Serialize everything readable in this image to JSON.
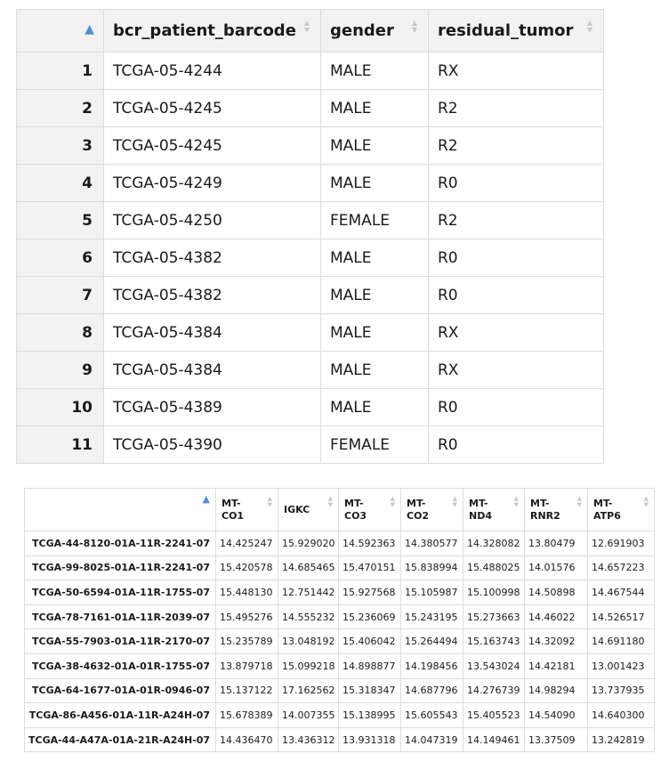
{
  "table1": {
    "columns": [
      "bcr_patient_barcode",
      "gender",
      "residual_tumor"
    ],
    "rows": [
      {
        "n": "1",
        "barcode": "TCGA-05-4244",
        "gender": "MALE",
        "residual": "RX"
      },
      {
        "n": "2",
        "barcode": "TCGA-05-4245",
        "gender": "MALE",
        "residual": "R2"
      },
      {
        "n": "3",
        "barcode": "TCGA-05-4245",
        "gender": "MALE",
        "residual": "R2"
      },
      {
        "n": "4",
        "barcode": "TCGA-05-4249",
        "gender": "MALE",
        "residual": "R0"
      },
      {
        "n": "5",
        "barcode": "TCGA-05-4250",
        "gender": "FEMALE",
        "residual": "R2"
      },
      {
        "n": "6",
        "barcode": "TCGA-05-4382",
        "gender": "MALE",
        "residual": "R0"
      },
      {
        "n": "7",
        "barcode": "TCGA-05-4382",
        "gender": "MALE",
        "residual": "R0"
      },
      {
        "n": "8",
        "barcode": "TCGA-05-4384",
        "gender": "MALE",
        "residual": "RX"
      },
      {
        "n": "9",
        "barcode": "TCGA-05-4384",
        "gender": "MALE",
        "residual": "RX"
      },
      {
        "n": "10",
        "barcode": "TCGA-05-4389",
        "gender": "MALE",
        "residual": "R0"
      },
      {
        "n": "11",
        "barcode": "TCGA-05-4390",
        "gender": "FEMALE",
        "residual": "R0"
      }
    ]
  },
  "table2": {
    "columns": [
      {
        "l1": "MT-",
        "l2": "CO1"
      },
      {
        "l1": "IGKC",
        "l2": ""
      },
      {
        "l1": "MT-",
        "l2": "CO3"
      },
      {
        "l1": "MT-",
        "l2": "CO2"
      },
      {
        "l1": "MT-",
        "l2": "ND4"
      },
      {
        "l1": "MT-",
        "l2": "RNR2"
      },
      {
        "l1": "MT-",
        "l2": "ATP6"
      }
    ],
    "rows": [
      {
        "name": "TCGA-44-8120-01A-11R-2241-07",
        "v": [
          "14.425247",
          "15.929020",
          "14.592363",
          "14.380577",
          "14.328082",
          "13.80479",
          "12.691903"
        ]
      },
      {
        "name": "TCGA-99-8025-01A-11R-2241-07",
        "v": [
          "15.420578",
          "14.685465",
          "15.470151",
          "15.838994",
          "15.488025",
          "14.01576",
          "14.657223"
        ]
      },
      {
        "name": "TCGA-50-6594-01A-11R-1755-07",
        "v": [
          "15.448130",
          "12.751442",
          "15.927568",
          "15.105987",
          "15.100998",
          "14.50898",
          "14.467544"
        ]
      },
      {
        "name": "TCGA-78-7161-01A-11R-2039-07",
        "v": [
          "15.495276",
          "14.555232",
          "15.236069",
          "15.243195",
          "15.273663",
          "14.46022",
          "14.526517"
        ]
      },
      {
        "name": "TCGA-55-7903-01A-11R-2170-07",
        "v": [
          "15.235789",
          "13.048192",
          "15.406042",
          "15.264494",
          "15.163743",
          "14.32092",
          "14.691180"
        ]
      },
      {
        "name": "TCGA-38-4632-01A-01R-1755-07",
        "v": [
          "13.879718",
          "15.099218",
          "14.898877",
          "14.198456",
          "13.543024",
          "14.42181",
          "13.001423"
        ]
      },
      {
        "name": "TCGA-64-1677-01A-01R-0946-07",
        "v": [
          "15.137122",
          "17.162562",
          "15.318347",
          "14.687796",
          "14.276739",
          "14.98294",
          "13.737935"
        ]
      },
      {
        "name": "TCGA-86-A456-01A-11R-A24H-07",
        "v": [
          "15.678389",
          "14.007355",
          "15.138995",
          "15.605543",
          "15.405523",
          "14.54090",
          "14.640300"
        ]
      },
      {
        "name": "TCGA-44-A47A-01A-21R-A24H-07",
        "v": [
          "14.436470",
          "13.436312",
          "13.931318",
          "14.047319",
          "14.149461",
          "13.37509",
          "13.242819"
        ]
      }
    ]
  },
  "colors": {
    "header_bg": "#f2f2f2",
    "border": "#dcdcdc",
    "sort_active": "#4a90d9",
    "sort_inactive": "#c8c8c8"
  },
  "icons": {
    "sort_active": "sort-ascending-icon",
    "sort_inactive": "sort-both-icon"
  }
}
